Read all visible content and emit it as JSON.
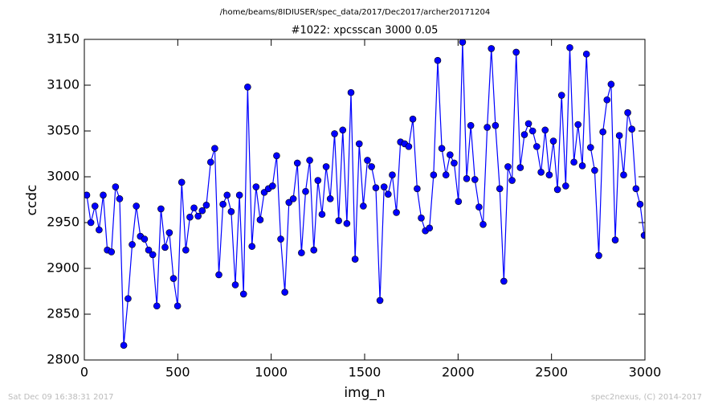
{
  "chart_data": {
    "type": "line",
    "header": "/home/beams/8IDIUSER/spec_data/2017/Dec2017/archer20171204",
    "title": "#1022: xpcsscan 3000 0.05",
    "xlabel": "img_n",
    "ylabel": "ccdc",
    "footer_left": "Sat Dec 09 16:38:31 2017",
    "footer_right": "spec2nexus, (C) 2014-2017",
    "x": [
      13,
      35,
      57,
      79,
      101,
      123,
      145,
      167,
      189,
      211,
      234,
      256,
      278,
      300,
      322,
      344,
      366,
      388,
      410,
      432,
      455,
      477,
      499,
      521,
      543,
      565,
      587,
      609,
      631,
      653,
      676,
      698,
      720,
      742,
      764,
      786,
      808,
      830,
      852,
      874,
      897,
      919,
      941,
      963,
      985,
      1007,
      1029,
      1051,
      1073,
      1095,
      1118,
      1140,
      1162,
      1184,
      1206,
      1228,
      1250,
      1272,
      1294,
      1316,
      1339,
      1361,
      1383,
      1405,
      1427,
      1449,
      1471,
      1493,
      1515,
      1537,
      1560,
      1582,
      1604,
      1626,
      1648,
      1670,
      1692,
      1714,
      1736,
      1758,
      1781,
      1803,
      1825,
      1847,
      1869,
      1891,
      1913,
      1935,
      1957,
      1979,
      2002,
      2024,
      2046,
      2068,
      2090,
      2112,
      2134,
      2156,
      2178,
      2200,
      2223,
      2245,
      2267,
      2289,
      2311,
      2333,
      2355,
      2377,
      2399,
      2421,
      2444,
      2466,
      2488,
      2510,
      2532,
      2554,
      2576,
      2598,
      2620,
      2642,
      2665,
      2687,
      2709,
      2731,
      2753,
      2775,
      2797,
      2819,
      2841,
      2863,
      2886,
      2908,
      2930,
      2952,
      2974,
      2996
    ],
    "series": [
      {
        "name": "ccdc",
        "color": "#0000ff",
        "values": [
          2980,
          2950,
          2968,
          2942,
          2980,
          2920,
          2918,
          2989,
          2976,
          2816,
          2867,
          2926,
          2968,
          2935,
          2932,
          2920,
          2915,
          2859,
          2965,
          2923,
          2939,
          2889,
          2859,
          2994,
          2920,
          2956,
          2966,
          2957,
          2963,
          2969,
          3016,
          3031,
          2893,
          2970,
          2980,
          2962,
          2882,
          2980,
          2872,
          3098,
          2924,
          2989,
          2953,
          2983,
          2987,
          2990,
          3023,
          2932,
          2874,
          2972,
          2976,
          3015,
          2917,
          2984,
          3018,
          2920,
          2996,
          2959,
          3011,
          2976,
          3047,
          2952,
          3051,
          2949,
          3092,
          2910,
          3036,
          2968,
          3018,
          3011,
          2988,
          2865,
          2989,
          2981,
          3002,
          2961,
          3038,
          3036,
          3033,
          3063,
          2987,
          2955,
          2941,
          2944,
          3002,
          3127,
          3031,
          3002,
          3024,
          3015,
          2973,
          3147,
          2998,
          3056,
          2997,
          2967,
          2948,
          3054,
          3140,
          3056,
          2987,
          2886,
          3011,
          2996,
          3136,
          3010,
          3046,
          3058,
          3050,
          3033,
          3005,
          3051,
          3002,
          3039,
          2986,
          3089,
          2990,
          3141,
          3016,
          3057,
          3012,
          3134,
          3032,
          3007,
          2914,
          3049,
          3084,
          3101,
          2931,
          3045,
          3002,
          3070,
          3052,
          2987,
          2970,
          2936
        ]
      }
    ],
    "xlim": [
      0,
      3000
    ],
    "xticks": [
      0,
      500,
      1000,
      1500,
      2000,
      2500,
      3000
    ],
    "ylim": [
      2800,
      3150
    ],
    "yticks": [
      2800,
      2850,
      2900,
      2950,
      3000,
      3050,
      3100,
      3150
    ],
    "grid": false
  }
}
